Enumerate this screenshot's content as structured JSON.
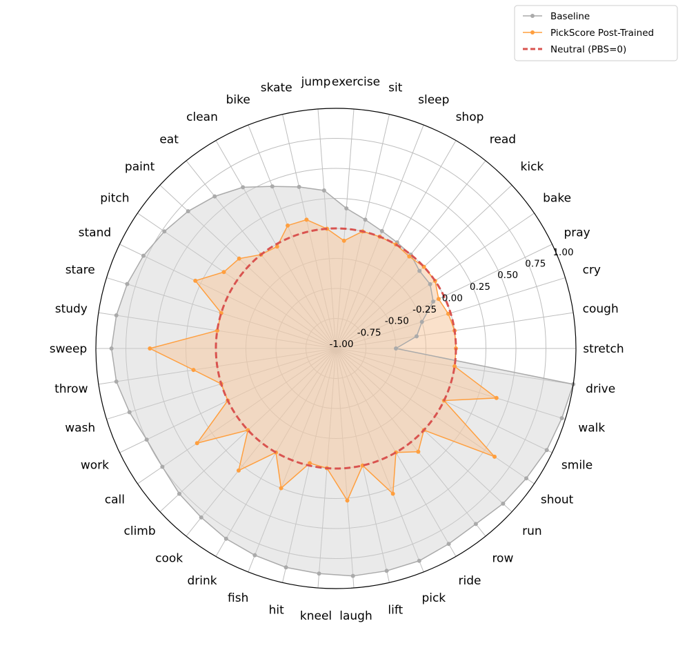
{
  "chart_data": {
    "type": "radar",
    "title": "",
    "categories": [
      "stretch",
      "cough",
      "cry",
      "pray",
      "bake",
      "kick",
      "read",
      "shop",
      "sleep",
      "sit",
      "exercise",
      "jump",
      "skate",
      "bike",
      "clean",
      "eat",
      "paint",
      "pitch",
      "stand",
      "stare",
      "study",
      "sweep",
      "throw",
      "wash",
      "work",
      "call",
      "climb",
      "cook",
      "drink",
      "fish",
      "hit",
      "kneel",
      "laugh",
      "lift",
      "pick",
      "ride",
      "row",
      "run",
      "shout",
      "smile",
      "walk",
      "drive"
    ],
    "rlim": [
      -1.0,
      1.0
    ],
    "rticks": [
      -1.0,
      -0.75,
      -0.5,
      -0.25,
      0.0,
      0.25,
      0.5,
      0.75,
      1.0
    ],
    "rtick_labels": [
      "-1.00",
      "-0.75",
      "-0.50",
      "-0.25",
      "0.00",
      "0.25",
      "0.50",
      "0.75",
      "1.00"
    ],
    "grid": true,
    "legend_position": "top-right",
    "series": [
      {
        "name": "Baseline",
        "color": "#aaaaaa",
        "fill": "#d0d0d0",
        "values": [
          -0.5,
          -0.32,
          -0.25,
          -0.1,
          -0.05,
          -0.05,
          0.0,
          0.02,
          0.05,
          0.1,
          0.17,
          0.32,
          0.38,
          0.45,
          0.55,
          0.62,
          0.68,
          0.73,
          0.78,
          0.82,
          0.85,
          0.87,
          0.85,
          0.8,
          0.75,
          0.75,
          0.78,
          0.8,
          0.83,
          0.85,
          0.87,
          0.88,
          0.9,
          0.9,
          0.9,
          0.88,
          0.87,
          0.9,
          0.92,
          0.95,
          0.97,
          1.0
        ]
      },
      {
        "name": "PickScore Post-Trained",
        "color": "#ff9f3f",
        "fill": "#f5c9a0",
        "values": [
          0.0,
          0.0,
          -0.02,
          -0.05,
          0.0,
          0.0,
          -0.02,
          0.0,
          0.0,
          0.0,
          -0.1,
          0.0,
          0.1,
          0.1,
          -0.02,
          0.0,
          0.1,
          0.13,
          0.3,
          0.0,
          0.0,
          0.55,
          0.2,
          0.0,
          0.0,
          0.4,
          0.0,
          0.3,
          0.0,
          0.25,
          -0.02,
          0.0,
          0.27,
          0.0,
          0.3,
          0.0,
          0.1,
          0.0,
          0.6,
          0.0,
          0.4,
          0.0
        ]
      }
    ],
    "reference": {
      "name": "Neutral (PBS=0)",
      "value": 0.0,
      "color": "#d9534f",
      "style": "dashed"
    }
  }
}
